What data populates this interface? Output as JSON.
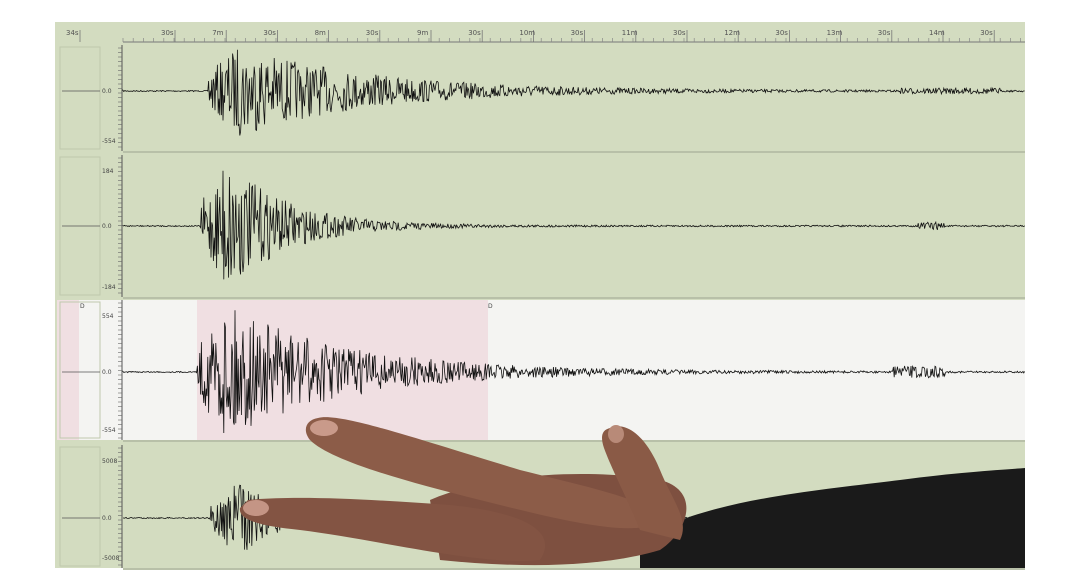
{
  "time_axis": {
    "labels": [
      "34s",
      "30s",
      "7m",
      "30s",
      "8m",
      "30s",
      "9m",
      "30s",
      "10m",
      "30s",
      "11m",
      "30s",
      "12m",
      "30s",
      "13m",
      "30s",
      "14m",
      "30s"
    ]
  },
  "channels": [
    {
      "amp_top": "",
      "zero": "0.0",
      "amp_bottom": "-554",
      "highlighted": false
    },
    {
      "amp_top": "184",
      "zero": "0.0",
      "amp_bottom": "-184",
      "highlighted": false
    },
    {
      "amp_top": "554",
      "zero": "0.0",
      "amp_bottom": "-554",
      "highlighted": true,
      "marker_left": "D",
      "marker_right": "D"
    },
    {
      "amp_top": "5008",
      "zero": "0.0",
      "amp_bottom": "-5008",
      "highlighted": false
    }
  ],
  "colors": {
    "screen_bg": "#d3dcc0",
    "highlight_bg": "#f4f4f2",
    "selection_bg": "#f0dfe2",
    "trace": "#111111",
    "skin": "#8c5c48",
    "sleeve": "#1a1a1a"
  }
}
